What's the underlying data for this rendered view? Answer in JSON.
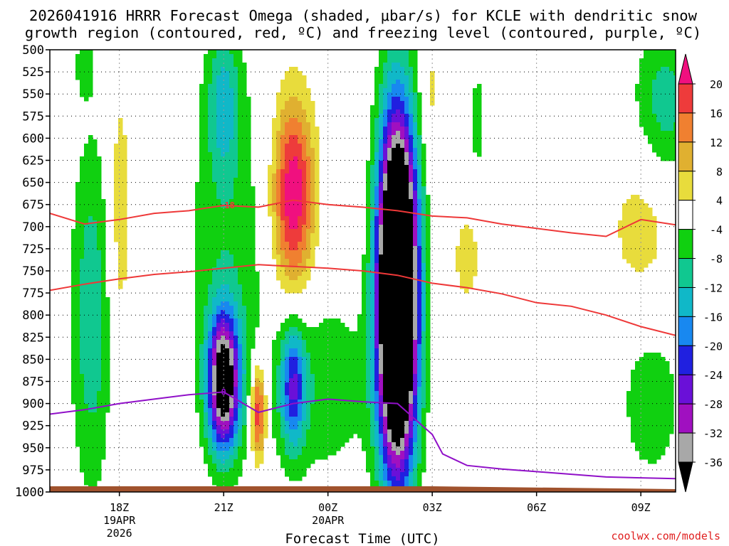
{
  "chart_data": {
    "type": "heatmap",
    "title_line1": "2026041916 HRRR Forecast Omega (shaded, μbar/s) for KCLE with dendritic snow",
    "title_line2": "growth region (contoured, red, ºC) and freezing level (contoured, purple, ºC)",
    "xlabel": "Forecast Time (UTC)",
    "x_ticks": [
      {
        "hour": 18,
        "label": "18Z",
        "sub1": "19APR",
        "sub2": "2026"
      },
      {
        "hour": 21,
        "label": "21Z",
        "sub1": "",
        "sub2": ""
      },
      {
        "hour": 24,
        "label": "00Z",
        "sub1": "20APR",
        "sub2": ""
      },
      {
        "hour": 27,
        "label": "03Z",
        "sub1": "",
        "sub2": ""
      },
      {
        "hour": 30,
        "label": "06Z",
        "sub1": "",
        "sub2": ""
      },
      {
        "hour": 33,
        "label": "09Z",
        "sub1": "",
        "sub2": ""
      }
    ],
    "x_range_hours": [
      16,
      34
    ],
    "y_ticks": [
      500,
      525,
      550,
      575,
      600,
      625,
      650,
      675,
      700,
      725,
      750,
      775,
      800,
      825,
      850,
      875,
      900,
      925,
      950,
      975,
      1000
    ],
    "y_range_hpa": [
      500,
      1000
    ],
    "colorbar": {
      "labels": [
        "20",
        "16",
        "12",
        "8",
        "4",
        "-4",
        "-8",
        "-12",
        "-16",
        "-20",
        "-24",
        "-28",
        "-32",
        "-36"
      ],
      "levels": [
        {
          "lo": 20,
          "hi": 999,
          "color": "#f0107f"
        },
        {
          "lo": 16,
          "hi": 20,
          "color": "#ee3b3b"
        },
        {
          "lo": 12,
          "hi": 16,
          "color": "#f08030"
        },
        {
          "lo": 8,
          "hi": 12,
          "color": "#e0b030"
        },
        {
          "lo": 4,
          "hi": 8,
          "color": "#e8dc3c"
        },
        {
          "lo": -4,
          "hi": 4,
          "color": "#ffffff"
        },
        {
          "lo": -8,
          "hi": -4,
          "color": "#10d010"
        },
        {
          "lo": -12,
          "hi": -8,
          "color": "#10c890"
        },
        {
          "lo": -16,
          "hi": -12,
          "color": "#10b8c8"
        },
        {
          "lo": -20,
          "hi": -16,
          "color": "#1888f0"
        },
        {
          "lo": -24,
          "hi": -20,
          "color": "#2020e0"
        },
        {
          "lo": -28,
          "hi": -24,
          "color": "#6a10d8"
        },
        {
          "lo": -32,
          "hi": -28,
          "color": "#a010c0"
        },
        {
          "lo": -36,
          "hi": -32,
          "color": "#a8a8a8"
        },
        {
          "lo": -999,
          "hi": -36,
          "color": "#000000"
        }
      ]
    },
    "omega_features": [
      {
        "t": 26.0,
        "p": 775,
        "peak": -80,
        "st": 0.55,
        "sp": 190
      },
      {
        "t": 21.0,
        "p": 875,
        "peak": -42,
        "st": 0.45,
        "sp": 75
      },
      {
        "t": 23.0,
        "p": 665,
        "peak": 24,
        "st": 0.6,
        "sp": 110
      },
      {
        "t": 22.0,
        "p": 910,
        "peak": 22,
        "st": 0.22,
        "sp": 55
      },
      {
        "t": 23.0,
        "p": 880,
        "peak": -20,
        "st": 0.35,
        "sp": 70
      },
      {
        "t": 17.2,
        "p": 800,
        "peak": -11,
        "st": 0.6,
        "sp": 200
      },
      {
        "t": 21.0,
        "p": 560,
        "peak": -11,
        "st": 0.45,
        "sp": 80
      },
      {
        "t": 18.0,
        "p": 690,
        "peak": 7,
        "st": 0.35,
        "sp": 170
      },
      {
        "t": 21.1,
        "p": 720,
        "peak": -7,
        "st": 1.2,
        "sp": 230
      },
      {
        "t": 23.8,
        "p": 880,
        "peak": -7,
        "st": 1.6,
        "sp": 110
      },
      {
        "t": 28.0,
        "p": 735,
        "peak": 6,
        "st": 0.45,
        "sp": 60
      },
      {
        "t": 33.0,
        "p": 700,
        "peak": 6,
        "st": 1.0,
        "sp": 90
      },
      {
        "t": 33.7,
        "p": 560,
        "peak": -10,
        "st": 0.9,
        "sp": 90
      },
      {
        "t": 33.3,
        "p": 900,
        "peak": -7,
        "st": 0.9,
        "sp": 90
      },
      {
        "t": 27.0,
        "p": 550,
        "peak": 5,
        "st": 0.3,
        "sp": 80
      },
      {
        "t": 28.3,
        "p": 580,
        "peak": -5.5,
        "st": 0.25,
        "sp": 80
      },
      {
        "t": 17.0,
        "p": 515,
        "peak": -5.5,
        "st": 0.3,
        "sp": 40
      }
    ],
    "dgz_contours": [
      {
        "label": "-18",
        "label_time": 21.1,
        "points": [
          [
            16,
            685
          ],
          [
            17,
            697
          ],
          [
            18,
            692
          ],
          [
            19,
            685
          ],
          [
            20,
            682
          ],
          [
            21,
            676
          ],
          [
            22,
            678
          ],
          [
            23,
            670
          ],
          [
            24,
            675
          ],
          [
            25,
            678
          ],
          [
            26,
            682
          ],
          [
            27,
            688
          ],
          [
            28,
            690
          ],
          [
            29,
            697
          ],
          [
            30,
            702
          ],
          [
            31,
            707
          ],
          [
            32,
            711
          ],
          [
            33,
            692
          ],
          [
            34,
            698
          ]
        ]
      },
      {
        "label": "",
        "label_time": 0,
        "points": [
          [
            16,
            772
          ],
          [
            17,
            765
          ],
          [
            18,
            759
          ],
          [
            19,
            754
          ],
          [
            20,
            751
          ],
          [
            21,
            747
          ],
          [
            22,
            743
          ],
          [
            23,
            745
          ],
          [
            24,
            747
          ],
          [
            25,
            750
          ],
          [
            26,
            755
          ],
          [
            27,
            764
          ],
          [
            28,
            769
          ],
          [
            29,
            776
          ],
          [
            30,
            786
          ],
          [
            31,
            790
          ],
          [
            32,
            800
          ],
          [
            33,
            813
          ],
          [
            34,
            823
          ]
        ]
      }
    ],
    "freezing_contour": {
      "label": "0",
      "label_time": 21.0,
      "points": [
        [
          16,
          912
        ],
        [
          17,
          907
        ],
        [
          18,
          900
        ],
        [
          19,
          895
        ],
        [
          20,
          890
        ],
        [
          21,
          887
        ],
        [
          22,
          910
        ],
        [
          23,
          900
        ],
        [
          24,
          895
        ],
        [
          25,
          898
        ],
        [
          26,
          900
        ],
        [
          27,
          935
        ],
        [
          27.3,
          957
        ],
        [
          28,
          970
        ],
        [
          29,
          974
        ],
        [
          30,
          977
        ],
        [
          31,
          980
        ],
        [
          32,
          983
        ],
        [
          33,
          984
        ],
        [
          34,
          985
        ]
      ]
    },
    "ground_color": "#a0522d",
    "watermark": "coolwx.com/models"
  }
}
